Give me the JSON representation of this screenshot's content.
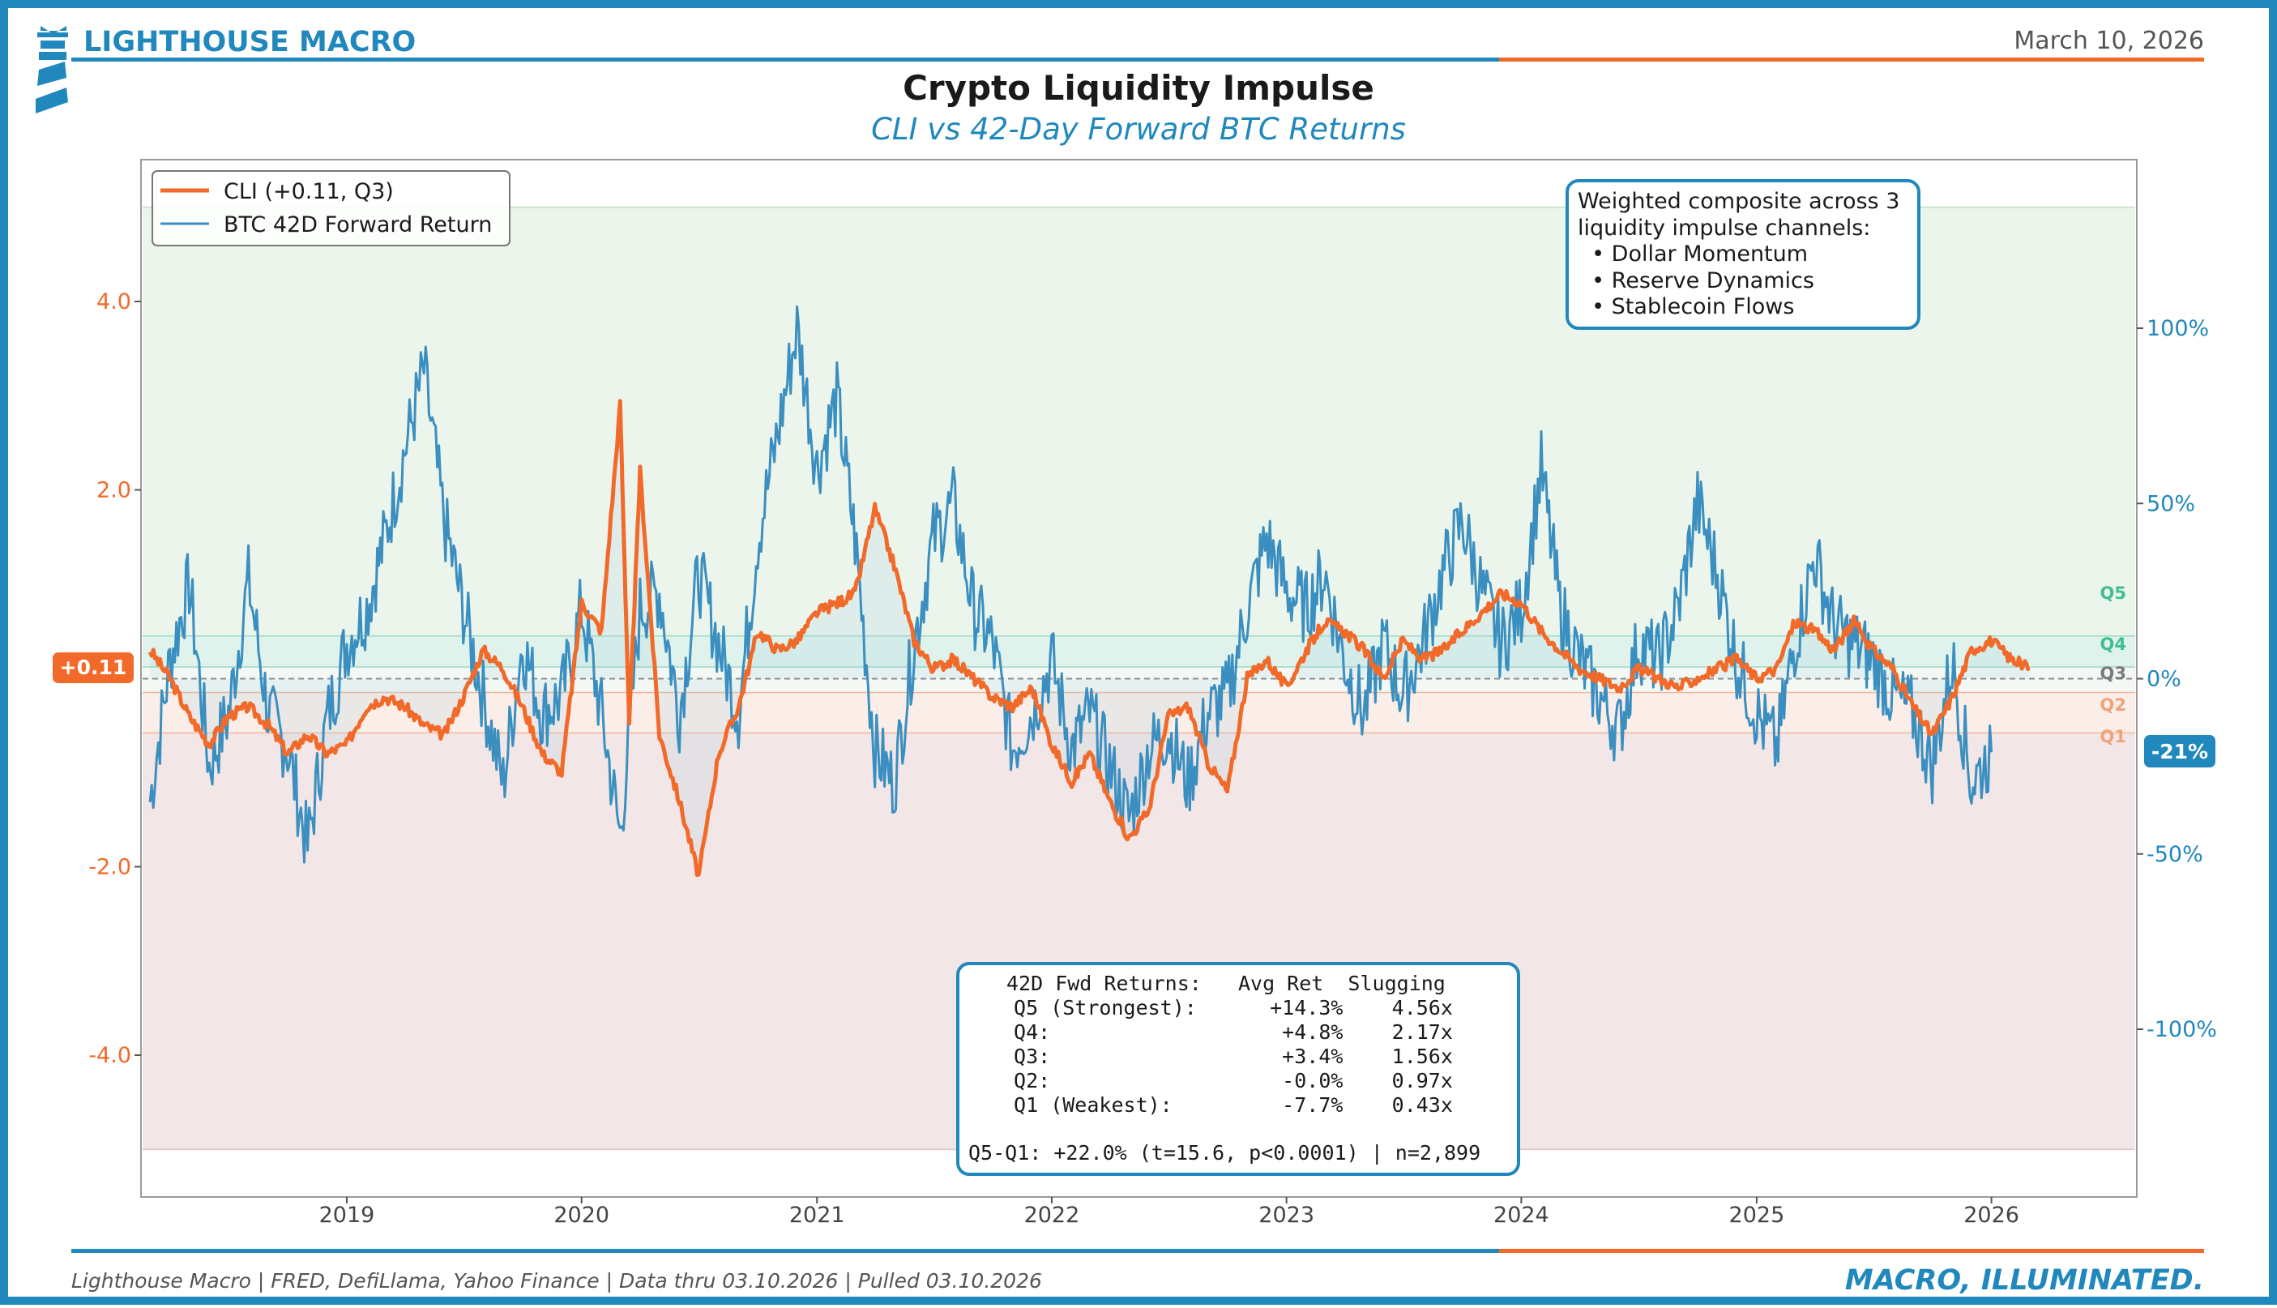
{
  "brand": {
    "name": "LIGHTHOUSE MACRO",
    "date": "March 10, 2026",
    "tagline": "MACRO, ILLUMINATED.",
    "footer": "Lighthouse Macro | FRED, DefiLlama, Yahoo Finance | Data thru 03.10.2026 | Pulled 03.10.2026"
  },
  "colors": {
    "brand_blue": "#2088bd",
    "brand_orange": "#f26a2a",
    "cli_line": "#f26a2a",
    "btc_line": "#3a8fc0",
    "q5_text": "#3fbf91",
    "q2_text": "#f0a37a",
    "q3_text": "#7a7a7a",
    "upper_band": "#ecf5ec",
    "lower_band": "#f3e6e6"
  },
  "chart_data": {
    "type": "line",
    "title": "Crypto Liquidity Impulse",
    "subtitle": "CLI vs 42-Day Forward BTC Returns",
    "x_ticks": [
      "2019",
      "2020",
      "2021",
      "2022",
      "2023",
      "2024",
      "2025",
      "2026"
    ],
    "y_left_ticks": [
      "4.0",
      "2.0",
      "-2.0",
      "-4.0"
    ],
    "y_left_range": [
      -5.5,
      5.5
    ],
    "y_right_ticks": [
      "100%",
      "50%",
      "0%",
      "-50%",
      "-100%"
    ],
    "y_right_range": [
      -147,
      137
    ],
    "x_range": [
      "2018-02-15",
      "2026-08-15"
    ],
    "legend": [
      "CLI (+0.11, Q3)",
      "BTC 42D Forward Return"
    ],
    "legend_position": "top-left",
    "grid": false,
    "quintile_labels": [
      "Q5",
      "Q4",
      "Q3",
      "Q2",
      "Q1"
    ],
    "quintile_thresholds_cli": [
      0.45,
      0.12,
      -0.15,
      -0.58
    ],
    "cli_current": "+0.11",
    "btc_current": "-21%",
    "series": [
      {
        "name": "CLI (+0.11, Q3)",
        "axis": "left",
        "points": [
          [
            "2018-03-01",
            0.3
          ],
          [
            "2018-04-01",
            0.0
          ],
          [
            "2018-05-01",
            -0.4
          ],
          [
            "2018-06-01",
            -0.7
          ],
          [
            "2018-07-01",
            -0.4
          ],
          [
            "2018-08-01",
            -0.3
          ],
          [
            "2018-09-01",
            -0.5
          ],
          [
            "2018-10-01",
            -0.8
          ],
          [
            "2018-11-01",
            -0.6
          ],
          [
            "2018-12-01",
            -0.8
          ],
          [
            "2019-01-01",
            -0.7
          ],
          [
            "2019-02-01",
            -0.3
          ],
          [
            "2019-03-01",
            -0.2
          ],
          [
            "2019-04-01",
            -0.3
          ],
          [
            "2019-05-01",
            -0.5
          ],
          [
            "2019-06-01",
            -0.6
          ],
          [
            "2019-07-01",
            -0.2
          ],
          [
            "2019-08-01",
            0.3
          ],
          [
            "2019-09-01",
            0.1
          ],
          [
            "2019-10-01",
            -0.3
          ],
          [
            "2019-11-01",
            -0.8
          ],
          [
            "2019-12-01",
            -1.0
          ],
          [
            "2020-01-01",
            0.8
          ],
          [
            "2020-02-01",
            0.5
          ],
          [
            "2020-03-01",
            2.9
          ],
          [
            "2020-03-15",
            -0.5
          ],
          [
            "2020-04-01",
            2.2
          ],
          [
            "2020-05-01",
            -0.6
          ],
          [
            "2020-06-01",
            -1.3
          ],
          [
            "2020-07-01",
            -2.1
          ],
          [
            "2020-08-01",
            -0.8
          ],
          [
            "2020-09-01",
            -0.3
          ],
          [
            "2020-10-01",
            0.5
          ],
          [
            "2020-11-01",
            0.3
          ],
          [
            "2020-12-01",
            0.4
          ],
          [
            "2021-01-01",
            0.7
          ],
          [
            "2021-02-01",
            0.8
          ],
          [
            "2021-03-01",
            0.9
          ],
          [
            "2021-04-01",
            1.8
          ],
          [
            "2021-05-01",
            1.2
          ],
          [
            "2021-06-01",
            0.4
          ],
          [
            "2021-07-01",
            0.1
          ],
          [
            "2021-08-01",
            0.2
          ],
          [
            "2021-09-01",
            0.0
          ],
          [
            "2021-10-01",
            -0.2
          ],
          [
            "2021-11-01",
            -0.3
          ],
          [
            "2021-12-01",
            -0.1
          ],
          [
            "2022-01-01",
            -0.7
          ],
          [
            "2022-02-01",
            -1.1
          ],
          [
            "2022-03-01",
            -0.8
          ],
          [
            "2022-04-01",
            -1.3
          ],
          [
            "2022-05-01",
            -1.7
          ],
          [
            "2022-06-01",
            -1.4
          ],
          [
            "2022-07-01",
            -0.4
          ],
          [
            "2022-08-01",
            -0.3
          ],
          [
            "2022-09-01",
            -0.9
          ],
          [
            "2022-10-01",
            -1.2
          ],
          [
            "2022-11-01",
            0.0
          ],
          [
            "2022-12-01",
            0.2
          ],
          [
            "2023-01-01",
            -0.1
          ],
          [
            "2023-02-01",
            0.3
          ],
          [
            "2023-03-01",
            0.6
          ],
          [
            "2023-04-01",
            0.5
          ],
          [
            "2023-05-01",
            0.3
          ],
          [
            "2023-06-01",
            0.0
          ],
          [
            "2023-07-01",
            0.4
          ],
          [
            "2023-08-01",
            0.2
          ],
          [
            "2023-09-01",
            0.3
          ],
          [
            "2023-10-01",
            0.5
          ],
          [
            "2023-11-01",
            0.7
          ],
          [
            "2023-12-01",
            0.9
          ],
          [
            "2024-01-01",
            0.8
          ],
          [
            "2024-02-01",
            0.5
          ],
          [
            "2024-03-01",
            0.3
          ],
          [
            "2024-04-01",
            0.1
          ],
          [
            "2024-05-01",
            0.0
          ],
          [
            "2024-06-01",
            -0.1
          ],
          [
            "2024-07-01",
            0.1
          ],
          [
            "2024-08-01",
            0.0
          ],
          [
            "2024-09-01",
            -0.1
          ],
          [
            "2024-10-01",
            0.0
          ],
          [
            "2024-11-01",
            0.1
          ],
          [
            "2024-12-01",
            0.2
          ],
          [
            "2025-01-01",
            0.0
          ],
          [
            "2025-02-01",
            0.1
          ],
          [
            "2025-03-01",
            0.6
          ],
          [
            "2025-04-01",
            0.5
          ],
          [
            "2025-05-01",
            0.3
          ],
          [
            "2025-06-01",
            0.6
          ],
          [
            "2025-07-01",
            0.3
          ],
          [
            "2025-08-01",
            0.1
          ],
          [
            "2025-09-01",
            -0.3
          ],
          [
            "2025-10-01",
            -0.6
          ],
          [
            "2025-11-01",
            -0.2
          ],
          [
            "2025-12-01",
            0.3
          ],
          [
            "2026-01-01",
            0.4
          ],
          [
            "2026-02-01",
            0.2
          ],
          [
            "2026-03-01",
            0.11
          ]
        ]
      },
      {
        "name": "BTC 42D Forward Return",
        "axis": "right",
        "points": [
          [
            "2018-03-01",
            -35
          ],
          [
            "2018-04-01",
            5
          ],
          [
            "2018-05-01",
            27
          ],
          [
            "2018-06-01",
            -25
          ],
          [
            "2018-07-01",
            -10
          ],
          [
            "2018-08-01",
            28
          ],
          [
            "2018-09-01",
            -10
          ],
          [
            "2018-10-01",
            -20
          ],
          [
            "2018-11-01",
            -48
          ],
          [
            "2018-12-01",
            -12
          ],
          [
            "2019-01-01",
            10
          ],
          [
            "2019-02-01",
            20
          ],
          [
            "2019-03-01",
            40
          ],
          [
            "2019-04-01",
            65
          ],
          [
            "2019-05-01",
            88
          ],
          [
            "2019-06-01",
            45
          ],
          [
            "2019-07-01",
            20
          ],
          [
            "2019-08-01",
            -5
          ],
          [
            "2019-09-01",
            -30
          ],
          [
            "2019-10-01",
            10
          ],
          [
            "2019-11-01",
            -10
          ],
          [
            "2019-12-01",
            -5
          ],
          [
            "2020-01-01",
            20
          ],
          [
            "2020-02-01",
            -10
          ],
          [
            "2020-03-01",
            -45
          ],
          [
            "2020-04-01",
            20
          ],
          [
            "2020-05-01",
            25
          ],
          [
            "2020-06-01",
            -10
          ],
          [
            "2020-07-01",
            30
          ],
          [
            "2020-08-01",
            10
          ],
          [
            "2020-09-01",
            -10
          ],
          [
            "2020-10-01",
            40
          ],
          [
            "2020-11-01",
            70
          ],
          [
            "2020-12-01",
            100
          ],
          [
            "2021-01-01",
            60
          ],
          [
            "2021-02-01",
            80
          ],
          [
            "2021-03-01",
            40
          ],
          [
            "2021-04-01",
            -20
          ],
          [
            "2021-05-01",
            -30
          ],
          [
            "2021-06-01",
            10
          ],
          [
            "2021-07-01",
            40
          ],
          [
            "2021-08-01",
            50
          ],
          [
            "2021-09-01",
            20
          ],
          [
            "2021-10-01",
            10
          ],
          [
            "2021-11-01",
            -20
          ],
          [
            "2021-12-01",
            -10
          ],
          [
            "2022-01-01",
            5
          ],
          [
            "2022-02-01",
            -20
          ],
          [
            "2022-03-01",
            -10
          ],
          [
            "2022-04-01",
            -25
          ],
          [
            "2022-05-01",
            -40
          ],
          [
            "2022-06-01",
            -20
          ],
          [
            "2022-07-01",
            -15
          ],
          [
            "2022-08-01",
            -30
          ],
          [
            "2022-09-01",
            -10
          ],
          [
            "2022-10-01",
            -5
          ],
          [
            "2022-11-01",
            20
          ],
          [
            "2022-12-01",
            40
          ],
          [
            "2023-01-01",
            25
          ],
          [
            "2023-02-01",
            20
          ],
          [
            "2023-03-01",
            30
          ],
          [
            "2023-04-01",
            5
          ],
          [
            "2023-05-01",
            -10
          ],
          [
            "2023-06-01",
            10
          ],
          [
            "2023-07-01",
            -5
          ],
          [
            "2023-08-01",
            10
          ],
          [
            "2023-09-01",
            30
          ],
          [
            "2023-10-01",
            45
          ],
          [
            "2023-11-01",
            25
          ],
          [
            "2023-12-01",
            10
          ],
          [
            "2024-01-01",
            20
          ],
          [
            "2024-02-01",
            60
          ],
          [
            "2024-03-01",
            20
          ],
          [
            "2024-04-01",
            5
          ],
          [
            "2024-05-01",
            -5
          ],
          [
            "2024-06-01",
            -15
          ],
          [
            "2024-07-01",
            10
          ],
          [
            "2024-08-01",
            5
          ],
          [
            "2024-09-01",
            20
          ],
          [
            "2024-10-01",
            50
          ],
          [
            "2024-11-01",
            30
          ],
          [
            "2024-12-01",
            5
          ],
          [
            "2025-01-01",
            -10
          ],
          [
            "2025-02-01",
            -20
          ],
          [
            "2025-03-01",
            10
          ],
          [
            "2025-04-01",
            35
          ],
          [
            "2025-05-01",
            15
          ],
          [
            "2025-06-01",
            10
          ],
          [
            "2025-07-01",
            5
          ],
          [
            "2025-08-01",
            -5
          ],
          [
            "2025-09-01",
            -10
          ],
          [
            "2025-10-01",
            -25
          ],
          [
            "2025-11-01",
            5
          ],
          [
            "2025-12-01",
            -30
          ],
          [
            "2026-01-01",
            -21
          ]
        ]
      }
    ],
    "annotations": {
      "channels_box": [
        "Weighted composite across 3",
        "liquidity impulse channels:",
        "  • Dollar Momentum",
        "  • Reserve Dynamics",
        "  • Stablecoin Flows"
      ],
      "stats_table": {
        "header": "42D Fwd Returns:   Avg Ret  Slugging",
        "rows": [
          " Q5 (Strongest):      +14.3%    4.56x",
          " Q4:                   +4.8%    2.17x",
          " Q3:                   +3.4%    1.56x",
          " Q2:                   -0.0%    0.97x",
          " Q1 (Weakest):         -7.7%    0.43x"
        ],
        "footer": "Q5-Q1: +22.0% (t=15.6, p<0.0001) | n=2,899"
      }
    }
  }
}
